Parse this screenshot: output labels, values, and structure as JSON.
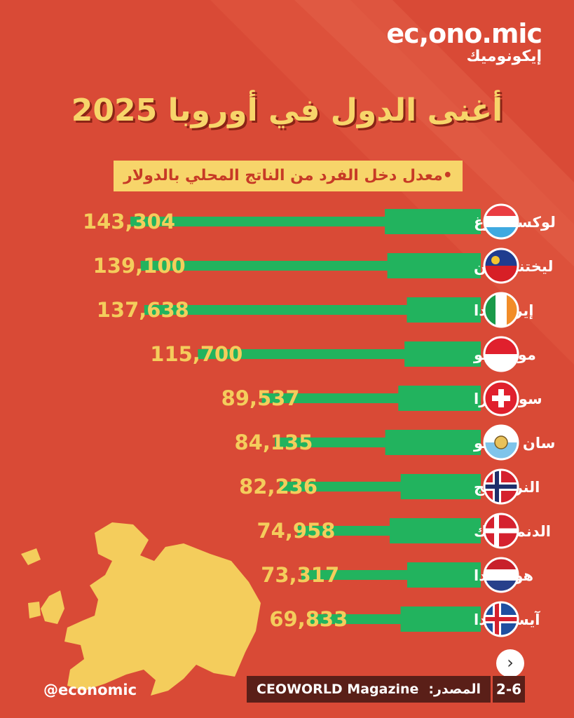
{
  "brand": {
    "latin": "ec,ono.mic",
    "arabic": "إيكونوميك"
  },
  "handle": "@economic",
  "source": {
    "label": "المصدر:",
    "value": "CEOWORLD Magazine"
  },
  "page_number": "2-6",
  "next_icon": "chevron-right-icon",
  "colors": {
    "background": "#d94a36",
    "bar": "#22b35e",
    "label_bg": "#22b35e",
    "value_text": "#f4cd5c",
    "title": "#f7d56a",
    "map": "#f4cd5c"
  },
  "chart_data": {
    "type": "bar",
    "orientation": "horizontal",
    "title": "أغنى الدول في أوروبا 2025",
    "subtitle": "•معدل دخل الفرد من الناتج المحلي بالدولار",
    "categories": [
      "لوكسمبورغ",
      "ليختنشتاين",
      "إيرلنـــدا",
      "موناكـــو",
      "سويســرا",
      "سان مارينو",
      "النرويـــج",
      "الدنمـــارك",
      "هولنـــدا",
      "آيسلنـــدا"
    ],
    "series": [
      {
        "values": [
          143304,
          139100,
          137638,
          115700,
          89537,
          84135,
          82236,
          74958,
          73317,
          69833
        ]
      }
    ],
    "value_labels": [
      "143,304",
      "139,100",
      "137,638",
      "115,700",
      "89,537",
      "84,135",
      "82,236",
      "74,958",
      "73,317",
      "69,833"
    ],
    "flags": [
      "luxembourg-flag-icon",
      "liechtenstein-flag-icon",
      "ireland-flag-icon",
      "monaco-flag-icon",
      "switzerland-flag-icon",
      "san-marino-flag-icon",
      "norway-flag-icon",
      "denmark-flag-icon",
      "netherlands-flag-icon",
      "iceland-flag-icon"
    ]
  }
}
